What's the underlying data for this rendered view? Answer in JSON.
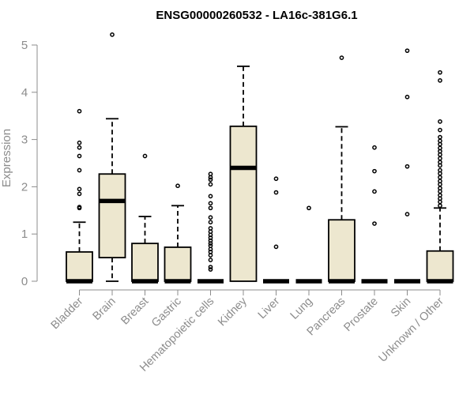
{
  "chart_data": {
    "type": "boxplot",
    "title": "ENSG00000260532 - LA16c-381G6.1",
    "ylabel": "Expression",
    "ylim": [
      0,
      5
    ],
    "yticks": [
      0,
      1,
      2,
      3,
      4,
      5
    ],
    "grid": false,
    "colors": {
      "box_fill": "#ede7cf",
      "box_stroke": "#000000",
      "axis": "#8c8c8c"
    },
    "categories": [
      "Bladder",
      "Brain",
      "Breast",
      "Gastric",
      "Hematopoietic cells",
      "Kidney",
      "Liver",
      "Lung",
      "Pancreas",
      "Prostate",
      "Skin",
      "Unknown / Other"
    ],
    "boxes": [
      {
        "q1": 0,
        "median": 0,
        "q3": 0.62,
        "whisker_low": 0,
        "whisker_high": 1.25,
        "outliers": [
          1.55,
          1.57,
          1.85,
          1.95,
          2.35,
          2.65,
          2.83,
          2.93,
          3.6
        ]
      },
      {
        "q1": 0.5,
        "median": 1.7,
        "q3": 2.27,
        "whisker_low": 0,
        "whisker_high": 3.44,
        "outliers": [
          5.22
        ]
      },
      {
        "q1": 0,
        "median": 0,
        "q3": 0.8,
        "whisker_low": 0,
        "whisker_high": 1.37,
        "outliers": [
          2.65
        ]
      },
      {
        "q1": 0,
        "median": 0,
        "q3": 0.72,
        "whisker_low": 0,
        "whisker_high": 1.6,
        "outliers": [
          2.02
        ]
      },
      {
        "q1": 0,
        "median": 0,
        "q3": 0,
        "whisker_low": 0,
        "whisker_high": 0,
        "outliers": [
          0.25,
          0.3,
          0.45,
          0.55,
          0.62,
          0.68,
          0.75,
          0.8,
          0.86,
          0.92,
          0.98,
          1.05,
          1.12,
          1.25,
          1.35,
          1.55,
          1.65,
          1.8,
          2.05,
          2.15,
          2.2,
          2.27
        ]
      },
      {
        "q1": 0,
        "median": 2.4,
        "q3": 3.28,
        "whisker_low": 0,
        "whisker_high": 4.55,
        "outliers": []
      },
      {
        "q1": 0,
        "median": 0,
        "q3": 0,
        "whisker_low": 0,
        "whisker_high": 0,
        "outliers": [
          0.73,
          1.88,
          2.17
        ]
      },
      {
        "q1": 0,
        "median": 0,
        "q3": 0,
        "whisker_low": 0,
        "whisker_high": 0,
        "outliers": [
          1.55
        ]
      },
      {
        "q1": 0,
        "median": 0,
        "q3": 1.3,
        "whisker_low": 0,
        "whisker_high": 3.27,
        "outliers": [
          4.73
        ]
      },
      {
        "q1": 0,
        "median": 0,
        "q3": 0,
        "whisker_low": 0,
        "whisker_high": 0,
        "outliers": [
          1.22,
          1.9,
          2.33,
          2.83
        ]
      },
      {
        "q1": 0,
        "median": 0,
        "q3": 0,
        "whisker_low": 0,
        "whisker_high": 0,
        "outliers": [
          1.42,
          2.43,
          3.9,
          4.88
        ]
      },
      {
        "q1": 0,
        "median": 0,
        "q3": 0.64,
        "whisker_low": 0,
        "whisker_high": 1.55,
        "outliers": [
          1.6,
          1.68,
          1.75,
          1.82,
          1.9,
          1.97,
          2.05,
          2.12,
          2.2,
          2.28,
          2.35,
          2.45,
          2.52,
          2.6,
          2.68,
          2.75,
          2.82,
          2.9,
          2.97,
          3.05,
          3.2,
          3.38,
          4.25,
          4.42
        ]
      }
    ]
  }
}
